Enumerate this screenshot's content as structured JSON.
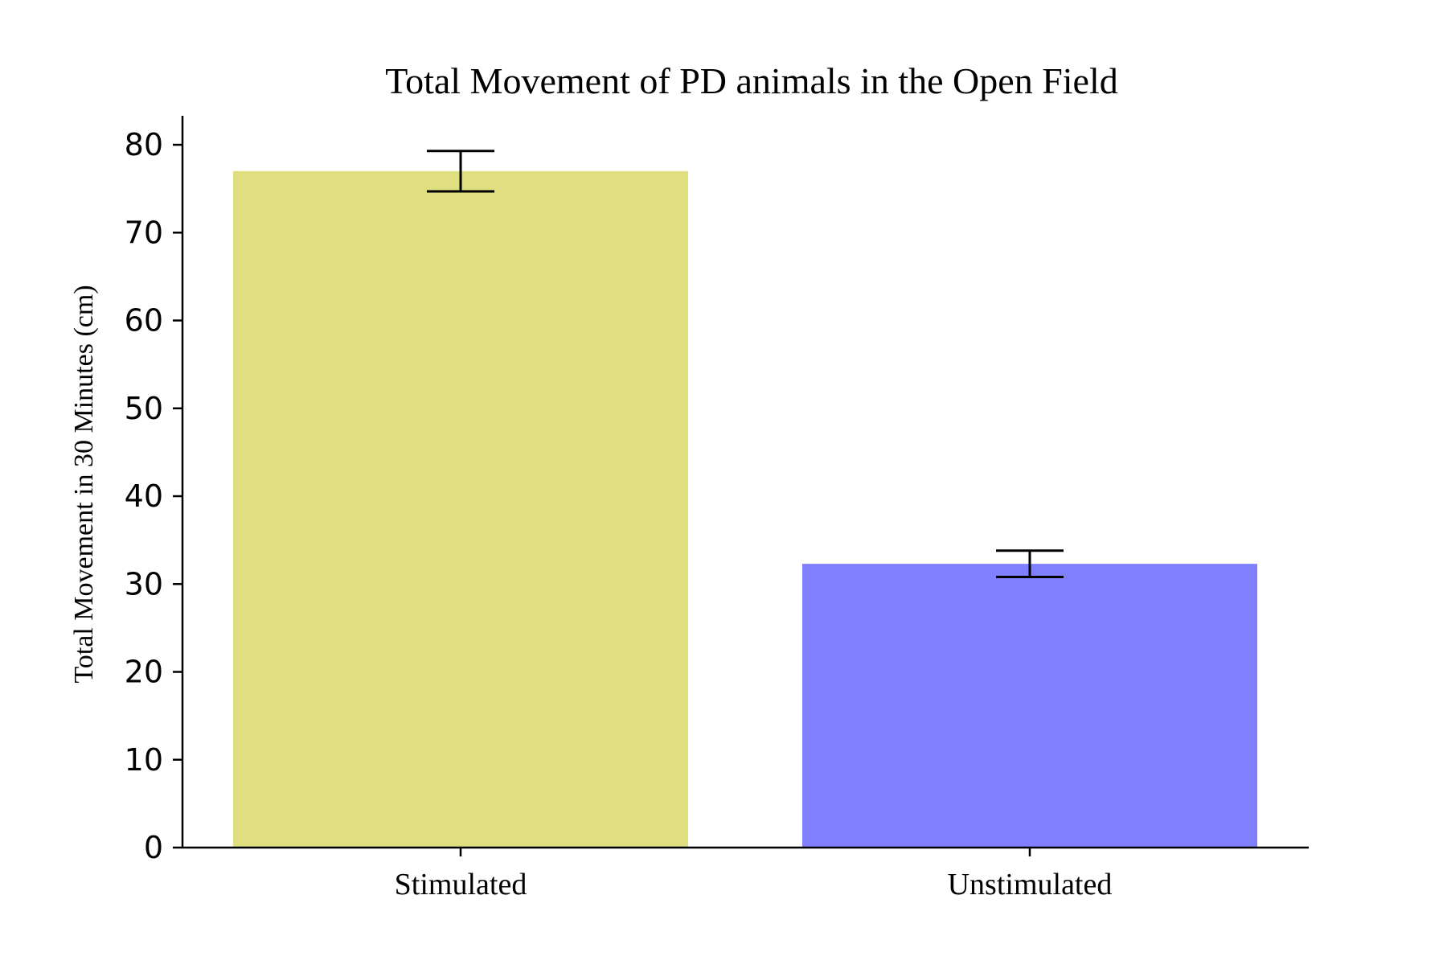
{
  "chart_data": {
    "type": "bar",
    "title": "Total Movement of PD animals in the Open Field",
    "xlabel": "",
    "ylabel": "Total Movement in 30 Minutes (cm)",
    "categories": [
      "Stimulated",
      "Unstimulated"
    ],
    "values": [
      77.0,
      32.3
    ],
    "errors": [
      2.3,
      1.5
    ],
    "colors": [
      "#dfdf7f",
      "#7f7fff"
    ],
    "ylim": [
      0,
      83.3
    ],
    "yticks": [
      0,
      10,
      20,
      30,
      40,
      50,
      60,
      70,
      80
    ],
    "grid": false,
    "legend": "none"
  }
}
